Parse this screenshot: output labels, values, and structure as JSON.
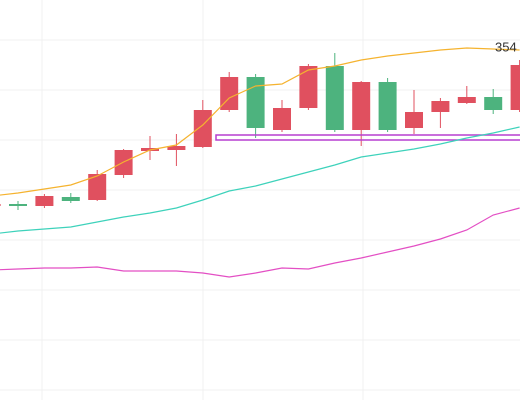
{
  "chart_data": {
    "type": "candlestick",
    "categories": [
      null,
      null,
      null,
      null,
      null,
      null,
      null,
      null,
      null,
      null,
      null,
      null,
      null,
      null,
      null,
      null,
      null,
      null,
      null,
      null,
      null
    ],
    "open": [
      322.8,
      323.2,
      322.8,
      324.6,
      324.0,
      329.0,
      333.8,
      334.0,
      334.6,
      342.0,
      348.6,
      338.0,
      342.4,
      350.8,
      338.0,
      347.6,
      338.4,
      341.6,
      343.4,
      344.6,
      342.0
    ],
    "high": [
      323.4,
      323.8,
      325.2,
      325.4,
      330.0,
      334.2,
      336.8,
      337.2,
      344.0,
      349.6,
      349.2,
      344.0,
      351.2,
      353.4,
      347.8,
      348.4,
      346.0,
      344.4,
      346.8,
      346.2,
      352.0
    ],
    "low": [
      322.6,
      322.0,
      322.4,
      323.4,
      323.8,
      328.4,
      332.0,
      330.8,
      334.4,
      341.6,
      336.4,
      337.6,
      342.0,
      337.6,
      334.8,
      337.6,
      337.2,
      338.4,
      343.2,
      341.2,
      341.6
    ],
    "close": [
      323.2,
      322.8,
      324.8,
      323.8,
      329.2,
      334.0,
      334.4,
      334.8,
      342.0,
      348.6,
      338.4,
      342.4,
      350.8,
      338.0,
      347.6,
      338.0,
      341.6,
      343.8,
      344.6,
      342.0,
      351.0
    ],
    "up_color": "#e0505f",
    "down_color": "#4db37e",
    "lines": [
      {
        "color": "#f5b32f",
        "values": [
          324.8,
          325.4,
          326.2,
          327.0,
          328.8,
          331.6,
          334.0,
          335.0,
          339.0,
          344.4,
          346.8,
          347.2,
          350.0,
          350.8,
          352.0,
          352.8,
          353.4,
          354.0,
          354.4,
          354.2,
          354.0
        ]
      },
      {
        "color": "#3ed2bb",
        "values": [
          317.2,
          317.8,
          318.2,
          318.6,
          319.6,
          320.6,
          321.4,
          322.4,
          324.0,
          325.8,
          326.8,
          328.2,
          329.6,
          331.0,
          332.6,
          333.4,
          334.2,
          335.2,
          336.4,
          337.4,
          338.6
        ]
      },
      {
        "color": "#e34fc4",
        "values": [
          310.0,
          310.2,
          310.4,
          310.4,
          310.6,
          309.8,
          309.8,
          309.8,
          309.4,
          308.6,
          309.4,
          310.4,
          310.2,
          311.4,
          312.4,
          313.6,
          314.8,
          316.2,
          318.0,
          321.0,
          322.4
        ]
      }
    ],
    "band": [
      336,
      337
    ],
    "band_color": "#b73fd0",
    "annotation": "354",
    "ylim": [
      284,
      364
    ],
    "yticks": [
      356,
      346,
      336,
      326,
      316,
      306,
      296,
      286
    ],
    "grid": true
  }
}
